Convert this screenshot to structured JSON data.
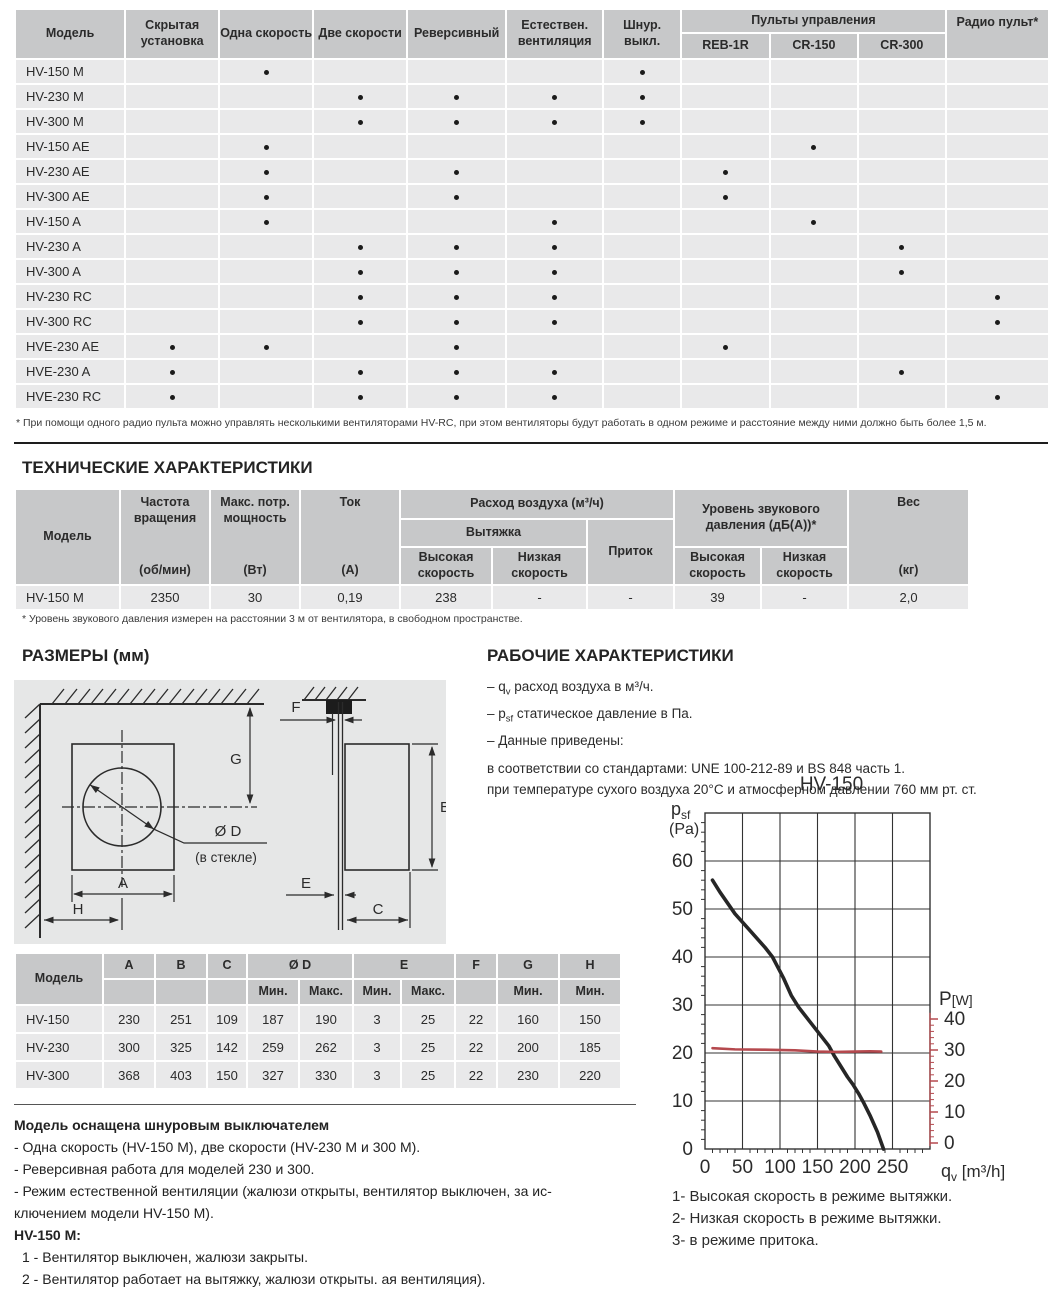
{
  "compat_table": {
    "col_model": "Модель",
    "columns": [
      "Скрытая установка",
      "Одна скорость",
      "Две скорости",
      "Реверсивный",
      "Естествен. вентиляция",
      "Шнур. выкл."
    ],
    "group": {
      "label": "Пульты управления",
      "columns": [
        "REB-1R",
        "CR-150",
        "CR-300"
      ]
    },
    "radio_col": "Радио пульт*",
    "rows": [
      {
        "model": "HV-150 M",
        "dots": [
          0,
          1,
          0,
          0,
          0,
          1,
          0,
          0,
          0,
          0
        ]
      },
      {
        "model": "HV-230 M",
        "dots": [
          0,
          0,
          1,
          1,
          1,
          1,
          0,
          0,
          0,
          0
        ]
      },
      {
        "model": "HV-300 M",
        "dots": [
          0,
          0,
          1,
          1,
          1,
          1,
          0,
          0,
          0,
          0
        ]
      },
      {
        "model": "HV-150 AE",
        "dots": [
          0,
          1,
          0,
          0,
          0,
          0,
          0,
          1,
          0,
          0
        ]
      },
      {
        "model": "HV-230 AE",
        "dots": [
          0,
          1,
          0,
          1,
          0,
          0,
          1,
          0,
          0,
          0
        ]
      },
      {
        "model": "HV-300 AE",
        "dots": [
          0,
          1,
          0,
          1,
          0,
          0,
          1,
          0,
          0,
          0
        ]
      },
      {
        "model": "HV-150 A",
        "dots": [
          0,
          1,
          0,
          0,
          1,
          0,
          0,
          1,
          0,
          0
        ]
      },
      {
        "model": "HV-230 A",
        "dots": [
          0,
          0,
          1,
          1,
          1,
          0,
          0,
          0,
          1,
          0
        ]
      },
      {
        "model": "HV-300 A",
        "dots": [
          0,
          0,
          1,
          1,
          1,
          0,
          0,
          0,
          1,
          0
        ]
      },
      {
        "model": "HV-230 RC",
        "dots": [
          0,
          0,
          1,
          1,
          1,
          0,
          0,
          0,
          0,
          1
        ]
      },
      {
        "model": "HV-300 RC",
        "dots": [
          0,
          0,
          1,
          1,
          1,
          0,
          0,
          0,
          0,
          1
        ]
      },
      {
        "model": "HVE-230 AE",
        "dots": [
          1,
          1,
          0,
          1,
          0,
          0,
          1,
          0,
          0,
          0
        ]
      },
      {
        "model": "HVE-230 A",
        "dots": [
          1,
          0,
          1,
          1,
          1,
          0,
          0,
          0,
          1,
          0
        ]
      },
      {
        "model": "HVE-230 RC",
        "dots": [
          1,
          0,
          1,
          1,
          1,
          0,
          0,
          0,
          0,
          1
        ]
      }
    ],
    "footnote": "* При помощи одного радио пульта можно управлять несколькими вентиляторами HV-RC, при этом вентиляторы будут работать в одном режиме и расстояние между ними должно быть более 1,5 м."
  },
  "tech": {
    "heading": "ТЕХНИЧЕСКИЕ ХАРАКТЕРИСТИКИ",
    "h": {
      "model": "Модель",
      "freq": "Частота вращения",
      "freq_u": "(об/мин)",
      "power": "Макс. потр. мощность",
      "power_u": "(Вт)",
      "current": "Ток",
      "current_u": "(А)",
      "airflow": "Расход воздуха (м³/ч)",
      "exhaust": "Вытяжка",
      "supply": "Приток",
      "high": "Высокая скорость",
      "low": "Низкая скорость",
      "noise": "Уровень звукового давления (дБ(А))*",
      "weight": "Вес",
      "weight_u": "(кг)"
    },
    "row": [
      "HV-150 M",
      "2350",
      "30",
      "0,19",
      "238",
      "-",
      "-",
      "39",
      "-",
      "2,0"
    ],
    "footnote": "* Уровень звукового давления измерен на расстоянии 3 м от вентилятора, в свободном пространстве."
  },
  "dimensions": {
    "heading": "РАЗМЕРЫ (мм)",
    "diagram_labels": {
      "G": "G",
      "A": "A",
      "H": "H",
      "diam": "Ø D",
      "glass": "(в стекле)",
      "F": "F",
      "B": "B",
      "E": "E",
      "C": "C"
    },
    "table": {
      "col_model": "Модель",
      "cols": [
        "A",
        "B",
        "C",
        "Ø D",
        "E",
        "F",
        "G",
        "H"
      ],
      "min": "Мин.",
      "max": "Макс.",
      "rows": [
        [
          "HV-150",
          "230",
          "251",
          "109",
          "187",
          "190",
          "3",
          "25",
          "22",
          "160",
          "150"
        ],
        [
          "HV-230",
          "300",
          "325",
          "142",
          "259",
          "262",
          "3",
          "25",
          "22",
          "200",
          "185"
        ],
        [
          "HV-300",
          "368",
          "403",
          "150",
          "327",
          "330",
          "3",
          "25",
          "22",
          "230",
          "220"
        ]
      ]
    }
  },
  "performance": {
    "heading": "РАБОЧИЕ ХАРАКТЕРИСТИКИ",
    "bullets": [
      {
        "pre": "– q",
        "sub": "v",
        "post": " расход воздуха в м³/ч."
      },
      {
        "pre": "– p",
        "sub": "sf",
        "post": " статическое давление в Па."
      },
      {
        "pre": "– Данные приведены:",
        "sub": "",
        "post": ""
      }
    ],
    "lines": [
      "в соответствии со стандартами: UNE 100-212-89 и BS 848 часть 1.",
      "при температуре сухого воздуха 20°С и атмосферном давлении 760 мм рт. ст."
    ],
    "legend": [
      "1- Высокая скорость в режиме вытяжки.",
      "2- Низкая скорость в режиме вытяжки.",
      "3- в режиме притока."
    ]
  },
  "chart_data": {
    "type": "line",
    "title": "HV-150",
    "x_label": {
      "main": "q",
      "sub": "v",
      "unit": " [m³/h]"
    },
    "y_left_label": {
      "main": "p",
      "sub": "sf",
      "unit": "(Pa)"
    },
    "y_right_label": {
      "main": "P",
      "unit": "[W]"
    },
    "x_ticks": [
      0,
      50,
      100,
      150,
      200,
      250
    ],
    "x_range": [
      0,
      300
    ],
    "x_minor_step": 10,
    "y_left_ticks": [
      0,
      10,
      20,
      30,
      40,
      50,
      60
    ],
    "y_left_range": [
      0,
      70
    ],
    "y_left_minor_step": 2,
    "y_right_ticks": [
      0,
      10,
      20,
      30,
      40
    ],
    "y_right_minor_step": 2,
    "y_right_anchor_pa": 1.25,
    "y_right_pa_per_w": 0.6458,
    "grid": true,
    "colors": {
      "pressure": "#262626",
      "power": "#b5494e"
    },
    "series": [
      {
        "name": "p_sf (высокая скорость, вытяжка)",
        "axis": "left",
        "color": "#262626",
        "points": [
          [
            10,
            56
          ],
          [
            20,
            53.5
          ],
          [
            40,
            49
          ],
          [
            60,
            45.5
          ],
          [
            80,
            42
          ],
          [
            90,
            40
          ],
          [
            95,
            38.5
          ],
          [
            105,
            35.5
          ],
          [
            115,
            32
          ],
          [
            125,
            29.5
          ],
          [
            140,
            26.5
          ],
          [
            155,
            23.5
          ],
          [
            165,
            21.5
          ],
          [
            172,
            19.5
          ],
          [
            180,
            17.5
          ],
          [
            190,
            15
          ],
          [
            197,
            13.5
          ],
          [
            205,
            11.5
          ],
          [
            212,
            9.5
          ],
          [
            220,
            7
          ],
          [
            230,
            3.5
          ],
          [
            238,
            0
          ]
        ]
      },
      {
        "name": "P потребляемая мощность",
        "axis": "right",
        "color": "#b5494e",
        "points": [
          [
            10,
            30.6
          ],
          [
            40,
            30.2
          ],
          [
            80,
            30.1
          ],
          [
            120,
            29.9
          ],
          [
            150,
            29.5
          ],
          [
            175,
            29.4
          ],
          [
            200,
            29.5
          ],
          [
            220,
            29.6
          ],
          [
            235,
            29.5
          ]
        ]
      }
    ]
  },
  "notes": {
    "title": "Модель оснащена шнуровым выключателем",
    "items": [
      "- Одна скорость (HV-150 M), две скорости (HV-230 M и 300 M).",
      "- Реверсивная работа для моделей 230 и 300.",
      "- Режим естественной вентиляции (жалюзи открыты, вентилятор выключен, за ис-",
      "ключением модели HV-150 M)."
    ],
    "sub_title": "HV-150 M:",
    "sub_items": [
      "1 - Вентилятор выключен, жалюзи закрыты.",
      "2 - Вентилятор работает на вытяжку, жалюзи открыты.  ая вентиляция)."
    ]
  }
}
